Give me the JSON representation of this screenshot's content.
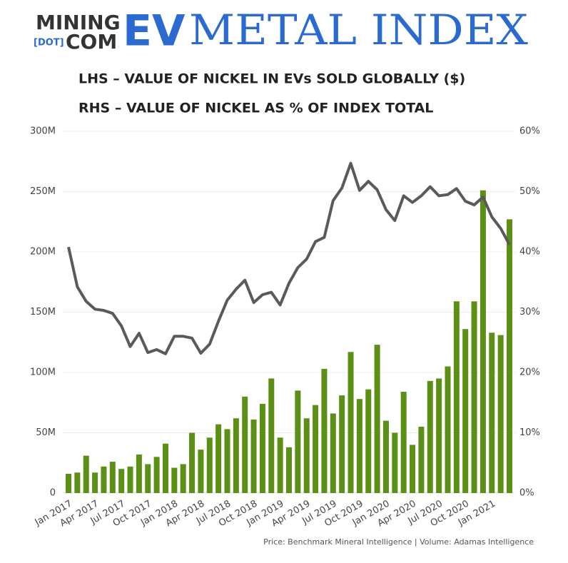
{
  "logo": {
    "mining": "MINING",
    "dot": "[DOT]",
    "com": "COM",
    "ev": "EV",
    "index": "METAL INDEX"
  },
  "chart_data": {
    "type": "bar-line",
    "title": "LHS – VALUE OF NICKEL IN EVs SOLD GLOBALLY ($)",
    "subtitle": "RHS – VALUE OF NICKEL AS % OF INDEX TOTAL",
    "source": "Price: Benchmark Mineral Intelligence | Volume: Adamas Intelligence",
    "categories": [
      "Jan 2017",
      null,
      null,
      "Apr 2017",
      null,
      null,
      "Jul 2017",
      null,
      null,
      "Oct 2017",
      null,
      null,
      "Jan 2018",
      null,
      null,
      "Apr 2018",
      null,
      null,
      "Jul 2018",
      null,
      null,
      "Oct 2018",
      null,
      null,
      "Jan 2019",
      null,
      null,
      "Apr 2019",
      null,
      null,
      "Jul 2019",
      null,
      null,
      "Oct 2019",
      null,
      null,
      "Jan 2020",
      null,
      null,
      "Apr 2020",
      null,
      null,
      "Jul 2020",
      null,
      null,
      "Oct 2020",
      null,
      null,
      "Jan 2021",
      null,
      null
    ],
    "series": [
      {
        "type": "bar",
        "color": "#5b8f16",
        "values": [
          16000000,
          17000000,
          31000000,
          17000000,
          22000000,
          26000000,
          20000000,
          22000000,
          32000000,
          24000000,
          30000000,
          41000000,
          21000000,
          24000000,
          50000000,
          36000000,
          46000000,
          57000000,
          53000000,
          62000000,
          80000000,
          61000000,
          74000000,
          95000000,
          46000000,
          38000000,
          85000000,
          62000000,
          73000000,
          103000000,
          66000000,
          81000000,
          117000000,
          78000000,
          86000000,
          123000000,
          60000000,
          50000000,
          84000000,
          40000000,
          55000000,
          93000000,
          95000000,
          105000000,
          159000000,
          136000000,
          159000000,
          251000000,
          133000000,
          131000000,
          227000000
        ]
      },
      {
        "type": "line",
        "axis": "y2",
        "color": "#5a5a5a",
        "values": [
          40.8,
          34.2,
          31.8,
          30.5,
          30.3,
          29.8,
          27.7,
          24.3,
          26.5,
          23.3,
          23.8,
          23.1,
          26.0,
          26.0,
          25.7,
          23.2,
          24.7,
          28.5,
          32.0,
          33.8,
          35.3,
          31.6,
          32.9,
          33.3,
          31.2,
          34.8,
          37.4,
          38.8,
          41.7,
          42.4,
          48.5,
          50.6,
          54.7,
          50.2,
          51.7,
          50.3,
          47.0,
          45.2,
          49.3,
          48.2,
          49.3,
          50.8,
          49.3,
          49.5,
          50.5,
          48.4,
          47.8,
          49.1,
          45.8,
          43.9,
          41.2
        ]
      }
    ],
    "ylim": [
      0,
      300000000
    ],
    "yticks": [
      0,
      {
        "value": 50000000,
        "label": "50M"
      },
      {
        "value": 100000000,
        "label": "100M"
      },
      {
        "value": 150000000,
        "label": "150M"
      },
      {
        "value": 200000000,
        "label": "200M"
      },
      {
        "value": 250000000,
        "label": "250M"
      },
      {
        "value": 300000000,
        "label": "300M"
      }
    ],
    "y2lim": [
      0,
      60
    ],
    "y2ticks": [
      {
        "value": 0,
        "label": "0%"
      },
      {
        "value": 10,
        "label": "10%"
      },
      {
        "value": 20,
        "label": "20%"
      },
      {
        "value": 30,
        "label": "30%"
      },
      {
        "value": 40,
        "label": "40%"
      },
      {
        "value": 50,
        "label": "50%"
      },
      {
        "value": 60,
        "label": "60%"
      }
    ],
    "grid": true
  }
}
